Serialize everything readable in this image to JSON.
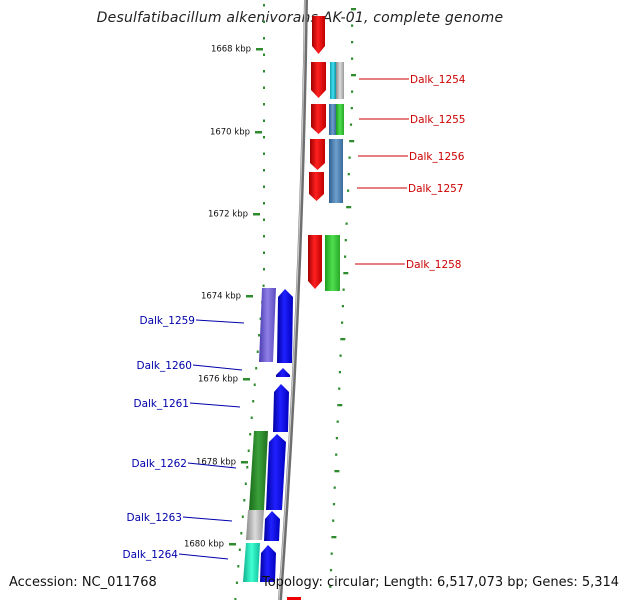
{
  "title": "Desulfatibacillum alkenivorans AK-01, complete genome",
  "footer": {
    "accession": "Accession: NC_011768",
    "summary": "Topology: circular; Length: 6,517,073 bp; Genes: 5,314"
  },
  "ticks": [
    "1668 kbp",
    "1670 kbp",
    "1672 kbp",
    "1674 kbp",
    "1676 kbp",
    "1678 kbp",
    "1680 kbp"
  ],
  "genes_forward": [
    "Dalk_1254",
    "Dalk_1255",
    "Dalk_1256",
    "Dalk_1257",
    "Dalk_1258"
  ],
  "genes_reverse": [
    "Dalk_1259",
    "Dalk_1260",
    "Dalk_1261",
    "Dalk_1262",
    "Dalk_1263",
    "Dalk_1264"
  ],
  "colors": {
    "forward_cds": "#ee0000",
    "forward_label": "#cc0000",
    "reverse_cds": "#0000ee",
    "reverse_label": "#0000aa",
    "gc_skew_ticks": "#2e8b2e",
    "backbone": "#888888"
  }
}
